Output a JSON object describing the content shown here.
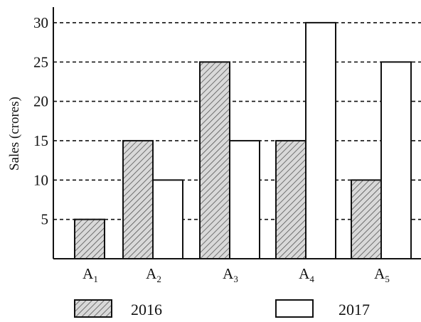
{
  "chart_data": {
    "type": "bar",
    "categories": [
      {
        "main": "A",
        "sub": "1"
      },
      {
        "main": "A",
        "sub": "2"
      },
      {
        "main": "A",
        "sub": "3"
      },
      {
        "main": "A",
        "sub": "4"
      },
      {
        "main": "A",
        "sub": "5"
      }
    ],
    "series": [
      {
        "name": "2016",
        "values": [
          5,
          15,
          25,
          15,
          10
        ],
        "style": "hatched"
      },
      {
        "name": "2017",
        "values": [
          null,
          10,
          15,
          30,
          25
        ],
        "style": "plain"
      }
    ],
    "ylabel": "Sales (crores)",
    "yticks": [
      5,
      10,
      15,
      20,
      25,
      30
    ],
    "ylim": [
      0,
      32
    ],
    "grid": true,
    "legend_position": "bottom",
    "colors": {
      "line": "#111111",
      "hatch_fill": "#d9d9d9",
      "plain_fill": "#ffffff"
    }
  }
}
